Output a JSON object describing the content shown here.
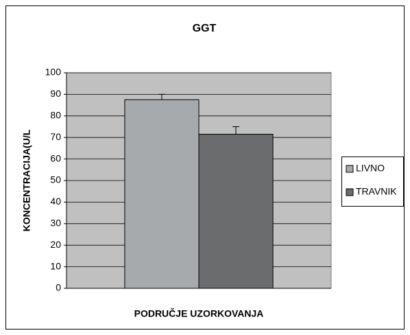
{
  "chart_data": {
    "type": "bar",
    "title": "GGT",
    "x_label": "PODRUČJE UZORKOVANJA",
    "y_label": "KONCENTRACIJA(U/L",
    "categories": [
      null
    ],
    "series": [
      {
        "name": "LIVNO",
        "color": "#a7aaad",
        "values": [
          87.5
        ],
        "errors": [
          2.5
        ]
      },
      {
        "name": "TRAVNIK",
        "color": "#6b6c6e",
        "values": [
          71.5
        ],
        "errors": [
          3.5
        ]
      }
    ],
    "ylim": [
      0,
      100
    ],
    "yticks": [
      0,
      10,
      20,
      30,
      40,
      50,
      60,
      70,
      80,
      90,
      100
    ],
    "grid": true,
    "legend": "right"
  }
}
